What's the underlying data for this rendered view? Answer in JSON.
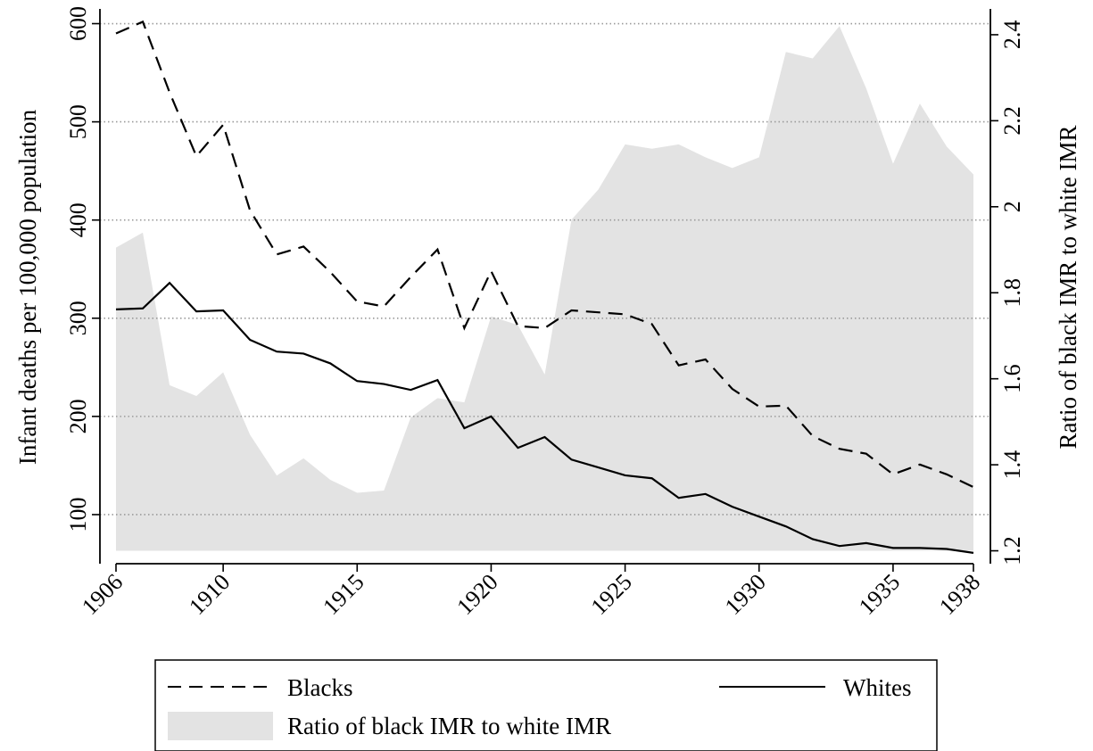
{
  "chart_data": {
    "type": "line",
    "x": [
      1906,
      1907,
      1908,
      1909,
      1910,
      1911,
      1912,
      1913,
      1914,
      1915,
      1916,
      1917,
      1918,
      1919,
      1920,
      1921,
      1922,
      1923,
      1924,
      1925,
      1926,
      1927,
      1928,
      1929,
      1930,
      1931,
      1932,
      1933,
      1934,
      1935,
      1936,
      1937,
      1938
    ],
    "xticks": [
      1906,
      1910,
      1915,
      1920,
      1925,
      1930,
      1935,
      1938
    ],
    "xlim": [
      1906,
      1938
    ],
    "ylabel": "Infant deaths per 100,000 population",
    "ylim": [
      50,
      615
    ],
    "yticks": [
      100,
      200,
      300,
      400,
      500,
      600
    ],
    "y2label": "Ratio of black IMR to white IMR",
    "y2lim": [
      1.17,
      2.46
    ],
    "y2ticks": [
      "1.2",
      "1.4",
      "1.6",
      "1.8",
      "2",
      "2.2",
      "2.4"
    ],
    "grid": "horizontal dotted",
    "legend_position": "bottom",
    "series": [
      {
        "name": "Blacks",
        "axis": "left",
        "style": "dashed",
        "color": "#000000",
        "values": [
          590,
          602,
          530,
          465,
          497,
          410,
          365,
          373,
          347,
          317,
          312,
          342,
          370,
          290,
          348,
          292,
          290,
          308,
          306,
          304,
          294,
          252,
          258,
          228,
          210,
          211,
          180,
          167,
          162,
          141,
          151,
          141,
          128
        ]
      },
      {
        "name": "Whites",
        "axis": "left",
        "style": "solid",
        "color": "#000000",
        "values": [
          309,
          310,
          336,
          307,
          308,
          278,
          266,
          264,
          254,
          236,
          233,
          227,
          237,
          188,
          200,
          168,
          179,
          156,
          148,
          140,
          137,
          117,
          121,
          108,
          98,
          88,
          75,
          68,
          71,
          66,
          66,
          65,
          61
        ]
      },
      {
        "name": "Ratio of black IMR to white IMR",
        "axis": "right",
        "style": "area",
        "color": "#e3e3e3",
        "values": [
          1.905,
          1.94,
          1.585,
          1.56,
          1.615,
          1.47,
          1.375,
          1.415,
          1.365,
          1.335,
          1.34,
          1.51,
          1.555,
          1.545,
          1.745,
          1.725,
          1.61,
          1.97,
          2.04,
          2.145,
          2.135,
          2.145,
          2.115,
          2.09,
          2.115,
          2.36,
          2.345,
          2.42,
          2.275,
          2.1,
          2.24,
          2.14,
          2.075
        ]
      }
    ]
  }
}
